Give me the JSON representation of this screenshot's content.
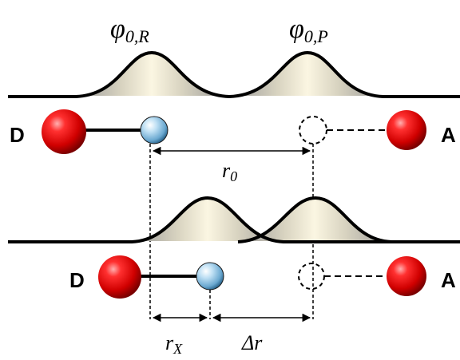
{
  "labels": {
    "phi_R": "φ0,R",
    "phi_R_main": "φ",
    "phi_R_sub": "0,R",
    "phi_P": "φ0,P",
    "phi_P_main": "φ",
    "phi_P_sub": "0,P",
    "donor_top": "D",
    "acceptor_top": "A",
    "donor_bottom": "D",
    "acceptor_bottom": "A",
    "r0": "r0",
    "r0_main": "r",
    "r0_sub": "0",
    "rX": "rX",
    "rX_main": "r",
    "rX_sub": "X",
    "delta_r": "Δr",
    "delta_r_main": "Δr"
  },
  "colors": {
    "donor_sphere": "#e01a1a",
    "acceptor_sphere": "#e01a1a",
    "particle_sphere": "#8ec5e6",
    "wave_fill_light": "#f7f2d8",
    "wave_fill_shade": "#b8b8b8",
    "line": "#000000"
  }
}
